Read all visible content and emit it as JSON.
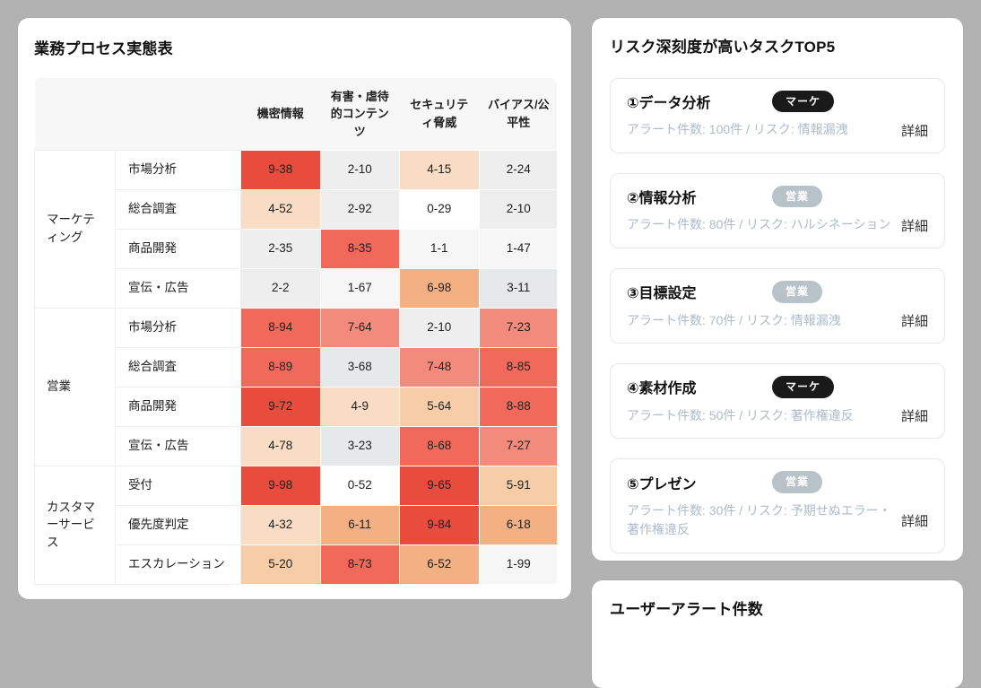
{
  "colors": {
    "page_bg": "#b2b2b2",
    "panel_bg": "#ffffff",
    "table_header_bg": "#f7f7f7",
    "table_border": "#eeeeee",
    "muted_text": "#aebbc9",
    "detail_text": "#2f2f2f",
    "badge_text": "#ffffff"
  },
  "heatmap_panel": {
    "title": "業務プロセス実態表",
    "columns": [
      "機密情報",
      "有害・虐待的コンテンツ",
      "セキュリティ脅威",
      "バイアス/公平性"
    ],
    "severity_colors": {
      "0": "#ffffff",
      "1": "#f6f6f6",
      "2": "#eeeeee",
      "3": "#e6e9e9",
      "4": "#f8dcc3",
      "5": "#f6cda6",
      "6": "#f3b183",
      "7": "#f28b7b",
      "8": "#f0695a",
      "9": "#e84c3d"
    },
    "groups": [
      {
        "name": "マーケティング",
        "rows": [
          {
            "task": "市場分析",
            "values": [
              "9-38",
              "2-10",
              "4-15",
              "2-24"
            ]
          },
          {
            "task": "総合調査",
            "values": [
              "4-52",
              "2-92",
              "0-29",
              "2-10"
            ]
          },
          {
            "task": "商品開発",
            "values": [
              "2-35",
              "8-35",
              "1-1",
              "1-47"
            ]
          },
          {
            "task": "宣伝・広告",
            "values": [
              "2-2",
              "1-67",
              "6-98",
              "3-11"
            ]
          }
        ]
      },
      {
        "name": "営業",
        "rows": [
          {
            "task": "市場分析",
            "values": [
              "8-94",
              "7-64",
              "2-10",
              "7-23"
            ]
          },
          {
            "task": "総合調査",
            "values": [
              "8-89",
              "3-68",
              "7-48",
              "8-85"
            ]
          },
          {
            "task": "商品開発",
            "values": [
              "9-72",
              "4-9",
              "5-64",
              "8-88"
            ]
          },
          {
            "task": "宣伝・広告",
            "values": [
              "4-78",
              "3-23",
              "8-68",
              "7-27"
            ]
          }
        ]
      },
      {
        "name": "カスタマーサービス",
        "rows": [
          {
            "task": "受付",
            "values": [
              "9-98",
              "0-52",
              "9-65",
              "5-91"
            ]
          },
          {
            "task": "優先度判定",
            "values": [
              "4-32",
              "6-11",
              "9-84",
              "6-18"
            ]
          },
          {
            "task": "エスカレーション",
            "values": [
              "5-20",
              "8-73",
              "6-52",
              "1-99"
            ]
          }
        ]
      }
    ]
  },
  "top5_panel": {
    "title": "リスク深刻度が高いタスクTOP5",
    "detail_label": "詳細",
    "badge_colors": {
      "マーケ": "#1a1a1a",
      "営業": "#b7c3c9"
    },
    "items": [
      {
        "title": "①データ分析",
        "badge": "マーケ",
        "subtitle": "アラート件数: 100件 / リスク: 情報漏洩"
      },
      {
        "title": "②情報分析",
        "badge": "営業",
        "subtitle": "アラート件数: 80件 / リスク: ハルシネーション"
      },
      {
        "title": "③目標設定",
        "badge": "営業",
        "subtitle": "アラート件数: 70件 / リスク: 情報漏洩"
      },
      {
        "title": "④素材作成",
        "badge": "マーケ",
        "subtitle": "アラート件数: 50件 / リスク: 著作権違反"
      },
      {
        "title": "⑤プレゼン",
        "badge": "営業",
        "subtitle": "アラート件数: 30件 / リスク: 予期せぬエラー・著作権違反"
      }
    ]
  },
  "alerts_panel": {
    "title": "ユーザーアラート件数"
  }
}
